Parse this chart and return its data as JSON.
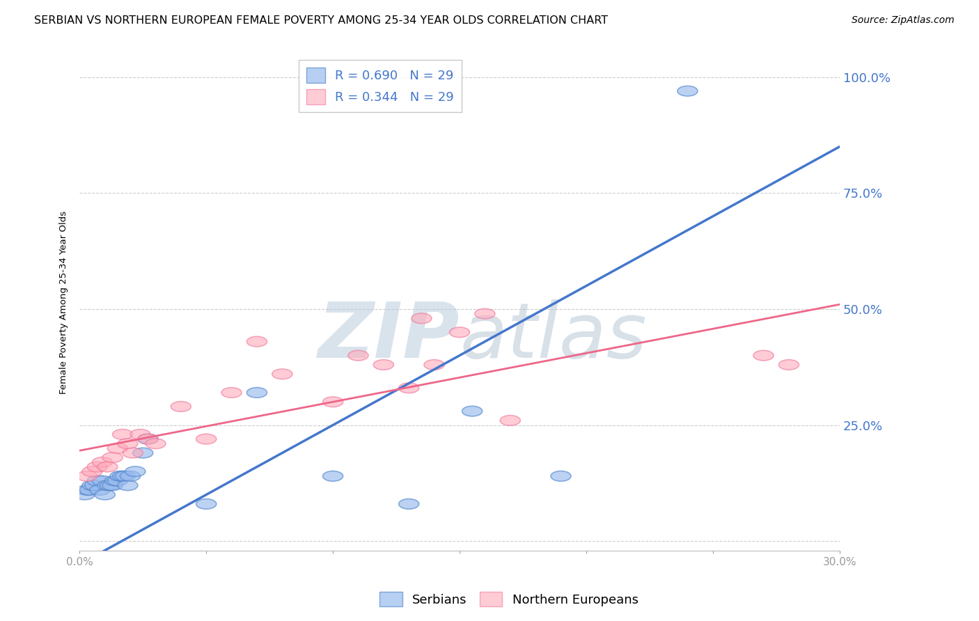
{
  "title": "SERBIAN VS NORTHERN EUROPEAN FEMALE POVERTY AMONG 25-34 YEAR OLDS CORRELATION CHART",
  "source": "Source: ZipAtlas.com",
  "ylabel": "Female Poverty Among 25-34 Year Olds",
  "xlim": [
    0.0,
    0.3
  ],
  "ylim": [
    -0.02,
    1.05
  ],
  "xtick_positions": [
    0.0,
    0.05,
    0.1,
    0.15,
    0.2,
    0.25,
    0.3
  ],
  "xticklabels": [
    "0.0%",
    "",
    "",
    "",
    "",
    "",
    "30.0%"
  ],
  "ytick_positions": [
    0.0,
    0.25,
    0.5,
    0.75,
    1.0
  ],
  "ytick_labels": [
    "",
    "25.0%",
    "50.0%",
    "75.0%",
    "100.0%"
  ],
  "serbian_x": [
    0.002,
    0.003,
    0.004,
    0.005,
    0.006,
    0.007,
    0.008,
    0.009,
    0.01,
    0.011,
    0.012,
    0.013,
    0.014,
    0.015,
    0.016,
    0.017,
    0.018,
    0.019,
    0.02,
    0.022,
    0.025,
    0.027,
    0.05,
    0.07,
    0.1,
    0.13,
    0.155,
    0.19,
    0.24
  ],
  "serbian_y": [
    0.1,
    0.11,
    0.11,
    0.12,
    0.12,
    0.13,
    0.11,
    0.13,
    0.1,
    0.12,
    0.12,
    0.12,
    0.13,
    0.13,
    0.14,
    0.14,
    0.14,
    0.12,
    0.14,
    0.15,
    0.19,
    0.22,
    0.08,
    0.32,
    0.14,
    0.08,
    0.28,
    0.14,
    0.97
  ],
  "northern_x": [
    0.003,
    0.005,
    0.007,
    0.009,
    0.011,
    0.013,
    0.015,
    0.017,
    0.019,
    0.021,
    0.024,
    0.027,
    0.03,
    0.04,
    0.05,
    0.06,
    0.07,
    0.08,
    0.1,
    0.11,
    0.12,
    0.13,
    0.135,
    0.14,
    0.15,
    0.16,
    0.17,
    0.27,
    0.28
  ],
  "northern_y": [
    0.14,
    0.15,
    0.16,
    0.17,
    0.16,
    0.18,
    0.2,
    0.23,
    0.21,
    0.19,
    0.23,
    0.22,
    0.21,
    0.29,
    0.22,
    0.32,
    0.43,
    0.36,
    0.3,
    0.4,
    0.38,
    0.33,
    0.48,
    0.38,
    0.45,
    0.49,
    0.26,
    0.4,
    0.38
  ],
  "serbian_R": 0.69,
  "northern_R": 0.344,
  "N": 29,
  "blue_scatter_color": "#99BBEE",
  "blue_edge_color": "#5588CC",
  "pink_scatter_color": "#FFAABB",
  "pink_edge_color": "#EE7799",
  "blue_line_color": "#4477CC",
  "pink_line_color": "#EE6688",
  "grid_color": "#CCCCCC",
  "watermark_zip_color": "#BBCCDD",
  "watermark_atlas_color": "#AABBCC",
  "background_color": "#FFFFFF",
  "title_fontsize": 11.5,
  "axis_label_fontsize": 9.5,
  "tick_fontsize": 11,
  "legend_fontsize": 13,
  "source_fontsize": 10,
  "blue_line_intercept": -0.05,
  "blue_line_slope": 3.0,
  "pink_line_intercept": 0.195,
  "pink_line_slope": 1.05
}
